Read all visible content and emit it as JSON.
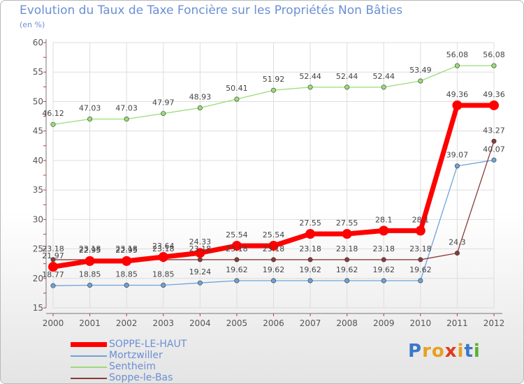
{
  "chart_data": {
    "type": "line",
    "title": "Evolution du Taux de Taxe Foncière sur les Propriétés Non Bâties",
    "subtitle": "(en %)",
    "x": [
      "2000",
      "2001",
      "2002",
      "2003",
      "2004",
      "2005",
      "2006",
      "2007",
      "2008",
      "2009",
      "2010",
      "2011",
      "2012"
    ],
    "ylim": [
      15,
      60
    ],
    "yticks": [
      "15",
      "20",
      "25",
      "30",
      "35",
      "40",
      "45",
      "50",
      "55",
      "60"
    ],
    "series": [
      {
        "name": "SOPPE-LE-HAUT",
        "color": "#ff0000",
        "values": [
          21.97,
          22.95,
          22.95,
          23.64,
          24.33,
          25.54,
          25.54,
          27.55,
          27.55,
          28.1,
          28.1,
          49.36,
          49.36
        ],
        "labels": [
          "21.97",
          "22.95",
          "22.95",
          "23.64",
          "24.33",
          "25.54",
          "25.54",
          "27.55",
          "27.55",
          "28.1",
          "28.1",
          "49.36",
          "49.36"
        ]
      },
      {
        "name": "Mortzwiller",
        "color": "#6fa3d8",
        "values": [
          18.77,
          18.85,
          18.85,
          18.85,
          19.24,
          19.62,
          19.62,
          19.62,
          19.62,
          19.62,
          19.62,
          39.07,
          40.07
        ],
        "labels": [
          "18.77",
          "18.85",
          "18.85",
          "18.85",
          "19.24",
          "19.62",
          "19.62",
          "19.62",
          "19.62",
          "19.62",
          "19.62",
          "39.07",
          "40.07"
        ]
      },
      {
        "name": "Sentheim",
        "color": "#99dd77",
        "values": [
          46.12,
          47.03,
          47.03,
          47.97,
          48.93,
          50.41,
          51.92,
          52.44,
          52.44,
          52.44,
          53.49,
          56.08,
          56.08
        ],
        "labels": [
          "46.12",
          "47.03",
          "47.03",
          "47.97",
          "48.93",
          "50.41",
          "51.92",
          "52.44",
          "52.44",
          "52.44",
          "53.49",
          "56.08",
          "56.08"
        ]
      },
      {
        "name": "Soppe-le-Bas",
        "color": "#8b3a3a",
        "values": [
          23.18,
          23.18,
          23.18,
          23.18,
          23.18,
          23.18,
          23.18,
          23.18,
          23.18,
          23.18,
          23.18,
          24.3,
          43.27
        ],
        "labels": [
          "23.18",
          "23.18",
          "23.18",
          "23.18",
          "23.18",
          "23.18",
          "23.18",
          "23.18",
          "23.18",
          "23.18",
          "23.18",
          "24.3",
          "43.27"
        ]
      }
    ]
  },
  "legend": {
    "items": [
      {
        "label": "SOPPE-LE-HAUT",
        "color": "#ff0000"
      },
      {
        "label": "Mortzwiller",
        "color": "#6fa3d8"
      },
      {
        "label": "Sentheim",
        "color": "#99dd77"
      },
      {
        "label": "Soppe-le-Bas",
        "color": "#8b3a3a"
      }
    ]
  },
  "logo": {
    "letters": [
      "P",
      "r",
      "o",
      "x",
      "i",
      "t",
      "i"
    ],
    "colors": [
      "#3a78c9",
      "#e8a020",
      "#e8a020",
      "#e03a1a",
      "#e8a020",
      "#3a78c9",
      "#5ab030"
    ]
  }
}
